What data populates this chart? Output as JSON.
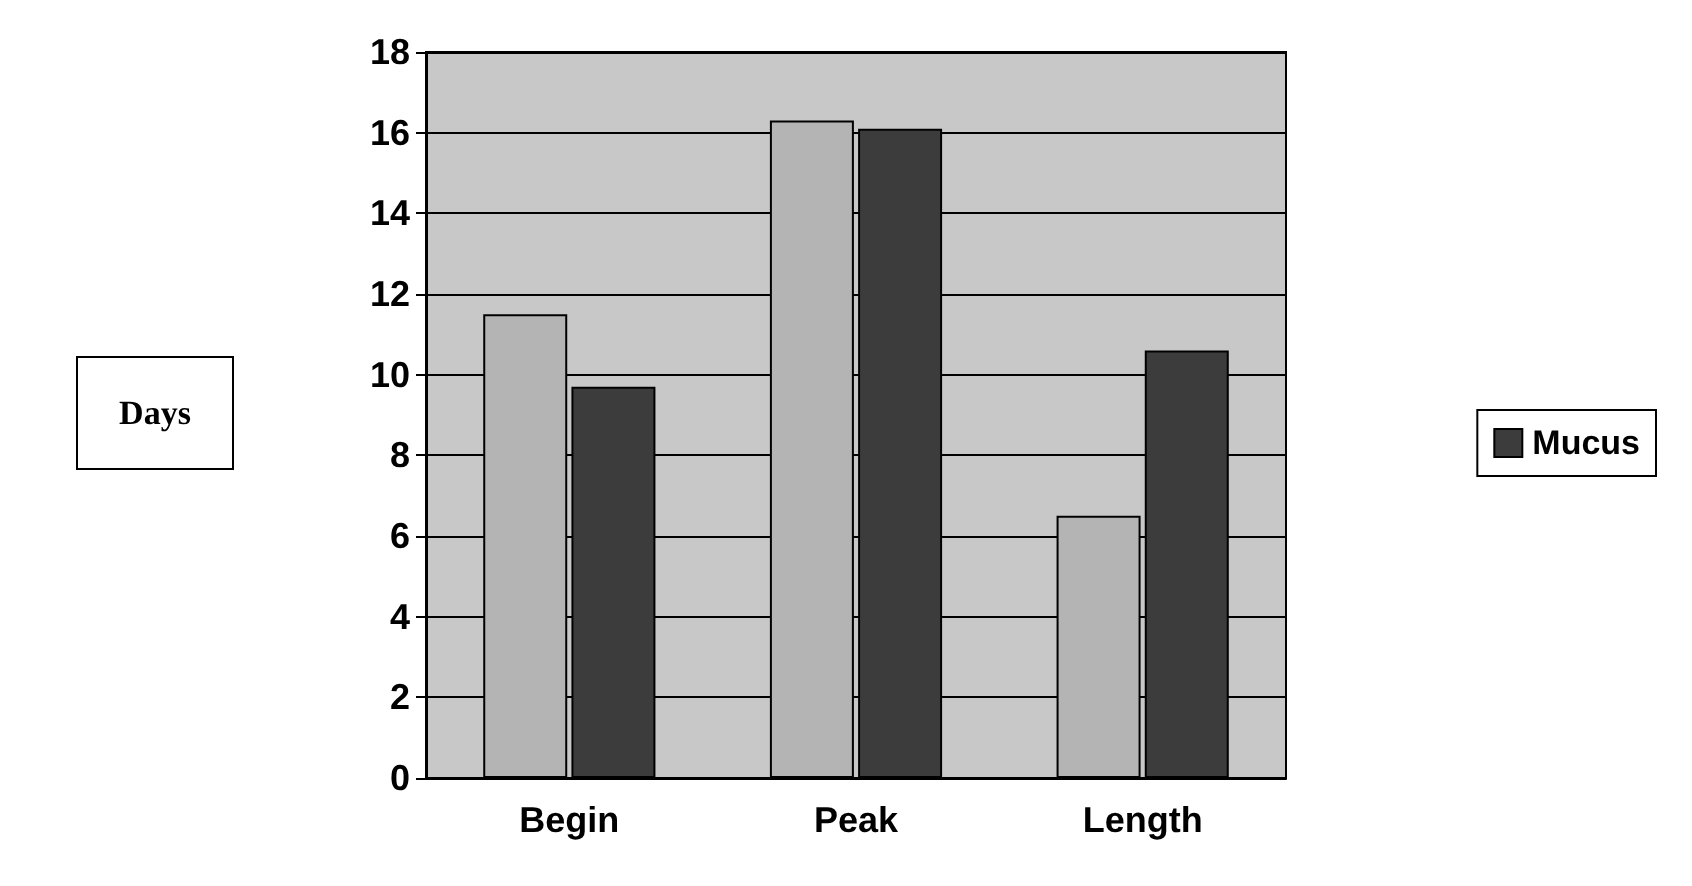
{
  "chart_data": {
    "type": "bar",
    "annotations": [
      "Days"
    ],
    "categories": [
      "Begin",
      "Peak",
      "Length"
    ],
    "series": [
      {
        "color": "#b4b4b4",
        "values": [
          11.5,
          16.3,
          6.5
        ]
      },
      {
        "name": "Mucus",
        "color": "#3c3c3c",
        "values": [
          9.7,
          16.1,
          10.6
        ]
      }
    ],
    "ylim": [
      0,
      18
    ],
    "yticks": [
      0,
      2,
      4,
      6,
      8,
      10,
      12,
      14,
      16,
      18
    ],
    "grid": "y",
    "legend": "right"
  }
}
